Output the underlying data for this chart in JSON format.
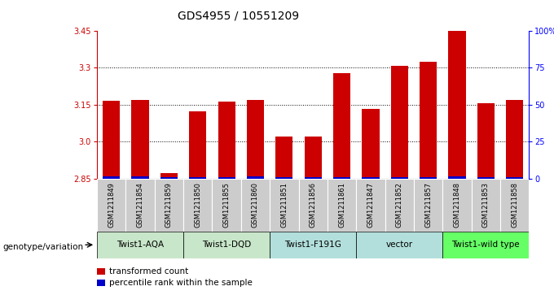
{
  "title": "GDS4955 / 10551209",
  "samples": [
    "GSM1211849",
    "GSM1211854",
    "GSM1211859",
    "GSM1211850",
    "GSM1211855",
    "GSM1211860",
    "GSM1211851",
    "GSM1211856",
    "GSM1211861",
    "GSM1211847",
    "GSM1211852",
    "GSM1211857",
    "GSM1211848",
    "GSM1211853",
    "GSM1211858"
  ],
  "red_values": [
    3.165,
    3.168,
    2.871,
    3.123,
    3.163,
    3.168,
    3.022,
    3.022,
    3.278,
    3.132,
    3.307,
    3.325,
    3.452,
    3.155,
    3.168
  ],
  "blue_heights": [
    0.008,
    0.007,
    0.004,
    0.006,
    0.006,
    0.007,
    0.005,
    0.005,
    0.006,
    0.005,
    0.006,
    0.006,
    0.007,
    0.006,
    0.006
  ],
  "ylim_left": [
    2.85,
    3.45
  ],
  "ylim_right": [
    0,
    100
  ],
  "yticks_left": [
    2.85,
    3.0,
    3.15,
    3.3,
    3.45
  ],
  "yticks_right": [
    0,
    25,
    50,
    75,
    100
  ],
  "ytick_labels_right": [
    "0",
    "25",
    "50",
    "75",
    "100%"
  ],
  "groups": [
    {
      "label": "Twist1-AQA",
      "indices": [
        0,
        1,
        2
      ],
      "color": "#c8e6c9"
    },
    {
      "label": "Twist1-DQD",
      "indices": [
        3,
        4,
        5
      ],
      "color": "#c8e6c9"
    },
    {
      "label": "Twist1-F191G",
      "indices": [
        6,
        7,
        8
      ],
      "color": "#b2dfdb"
    },
    {
      "label": "vector",
      "indices": [
        9,
        10,
        11
      ],
      "color": "#b2dfdb"
    },
    {
      "label": "Twist1-wild type",
      "indices": [
        12,
        13,
        14
      ],
      "color": "#66ff66"
    }
  ],
  "bar_color_red": "#cc0000",
  "bar_color_blue": "#0000cc",
  "bar_width": 0.6,
  "base_value": 2.85,
  "bg_color": "#ffffff",
  "group_label_x": "genotype/variation",
  "legend_red": "transformed count",
  "legend_blue": "percentile rank within the sample",
  "sample_bg_color": "#cccccc",
  "title_fontsize": 10,
  "tick_fontsize": 7,
  "group_label_fontsize": 7.5,
  "sample_fontsize": 6,
  "legend_fontsize": 7.5
}
